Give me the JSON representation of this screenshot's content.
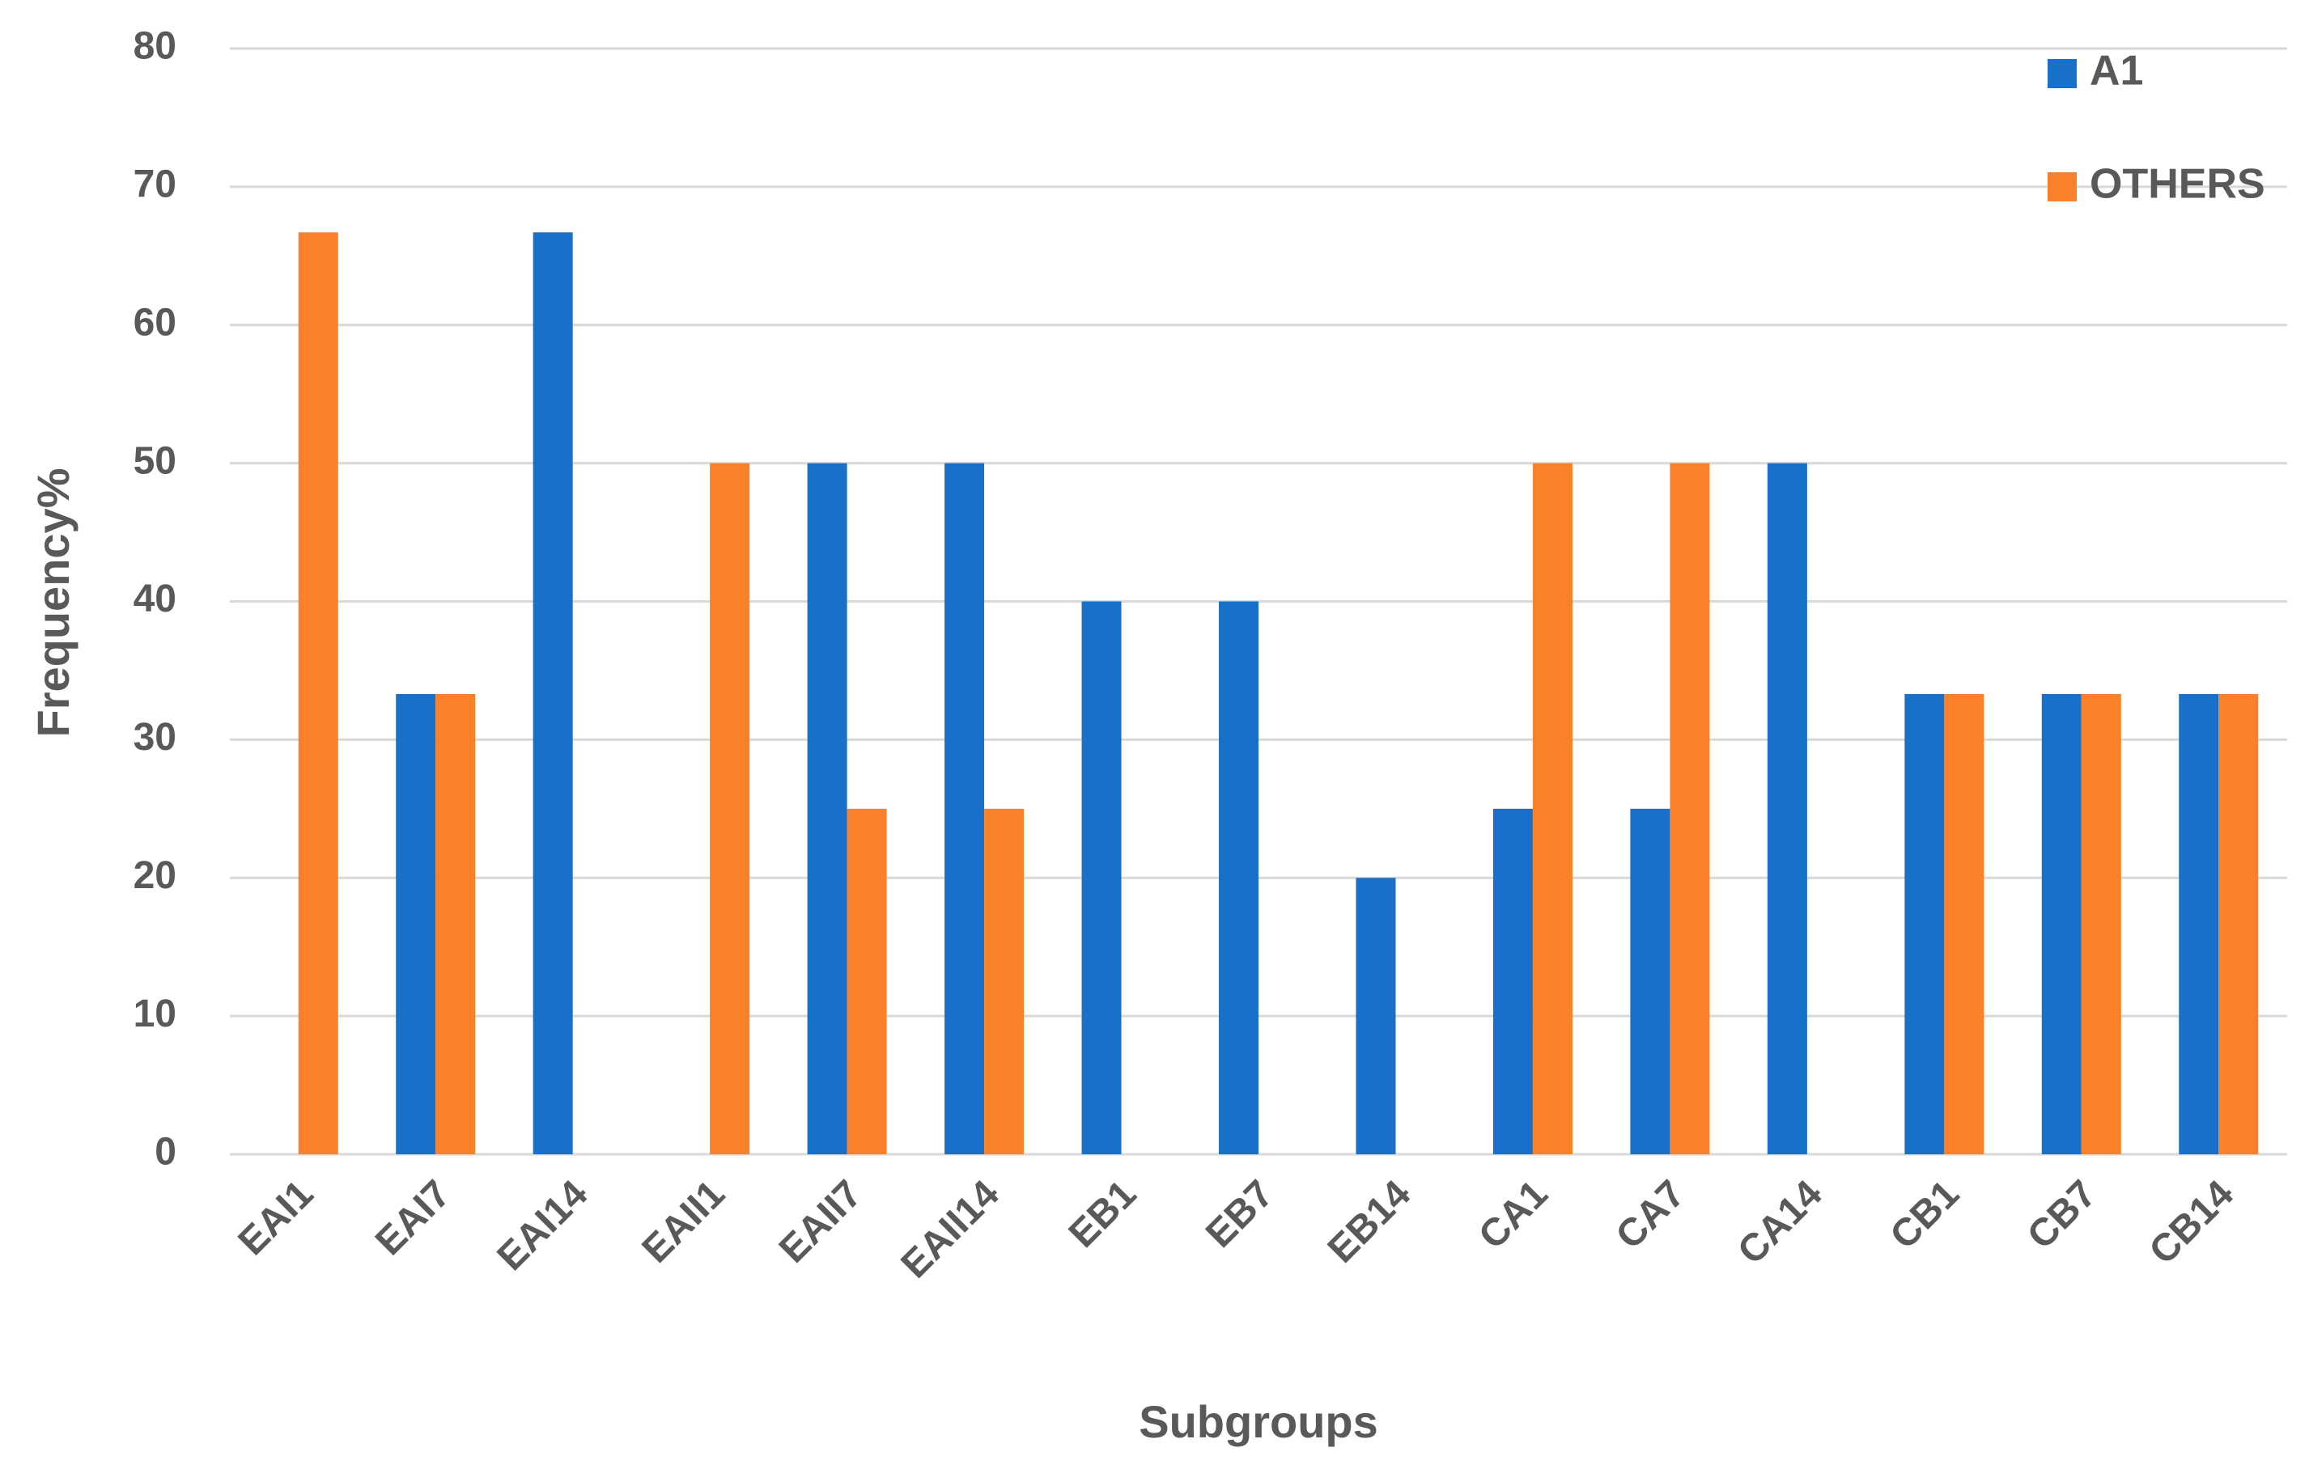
{
  "chart_data": {
    "type": "bar",
    "x_label": "Subgroups",
    "y_label": "Frequency%",
    "categories": [
      "EAI1",
      "EAI7",
      "EAI14",
      "EAII1",
      "EAII7",
      "EAII14",
      "EB1",
      "EB7",
      "EB14",
      "CA1",
      "CA7",
      "CA14",
      "CB1",
      "CB7",
      "CB14"
    ],
    "series": [
      {
        "name": "A1",
        "color": "#1870c8",
        "values": [
          0,
          33.3,
          66.7,
          0,
          50,
          50,
          40,
          40,
          20,
          25,
          25,
          50,
          33.3,
          33.3,
          33.3
        ]
      },
      {
        "name": "OTHERS",
        "color": "#f9812a",
        "values": [
          66.7,
          33.3,
          0,
          50,
          25,
          25,
          0,
          0,
          0,
          50,
          50,
          0,
          33.3,
          33.3,
          33.3
        ]
      }
    ],
    "ylim": [
      0,
      80
    ],
    "yticks": [
      0,
      10,
      20,
      30,
      40,
      50,
      60,
      70,
      80
    ],
    "grid": true,
    "legend": "upper right"
  }
}
